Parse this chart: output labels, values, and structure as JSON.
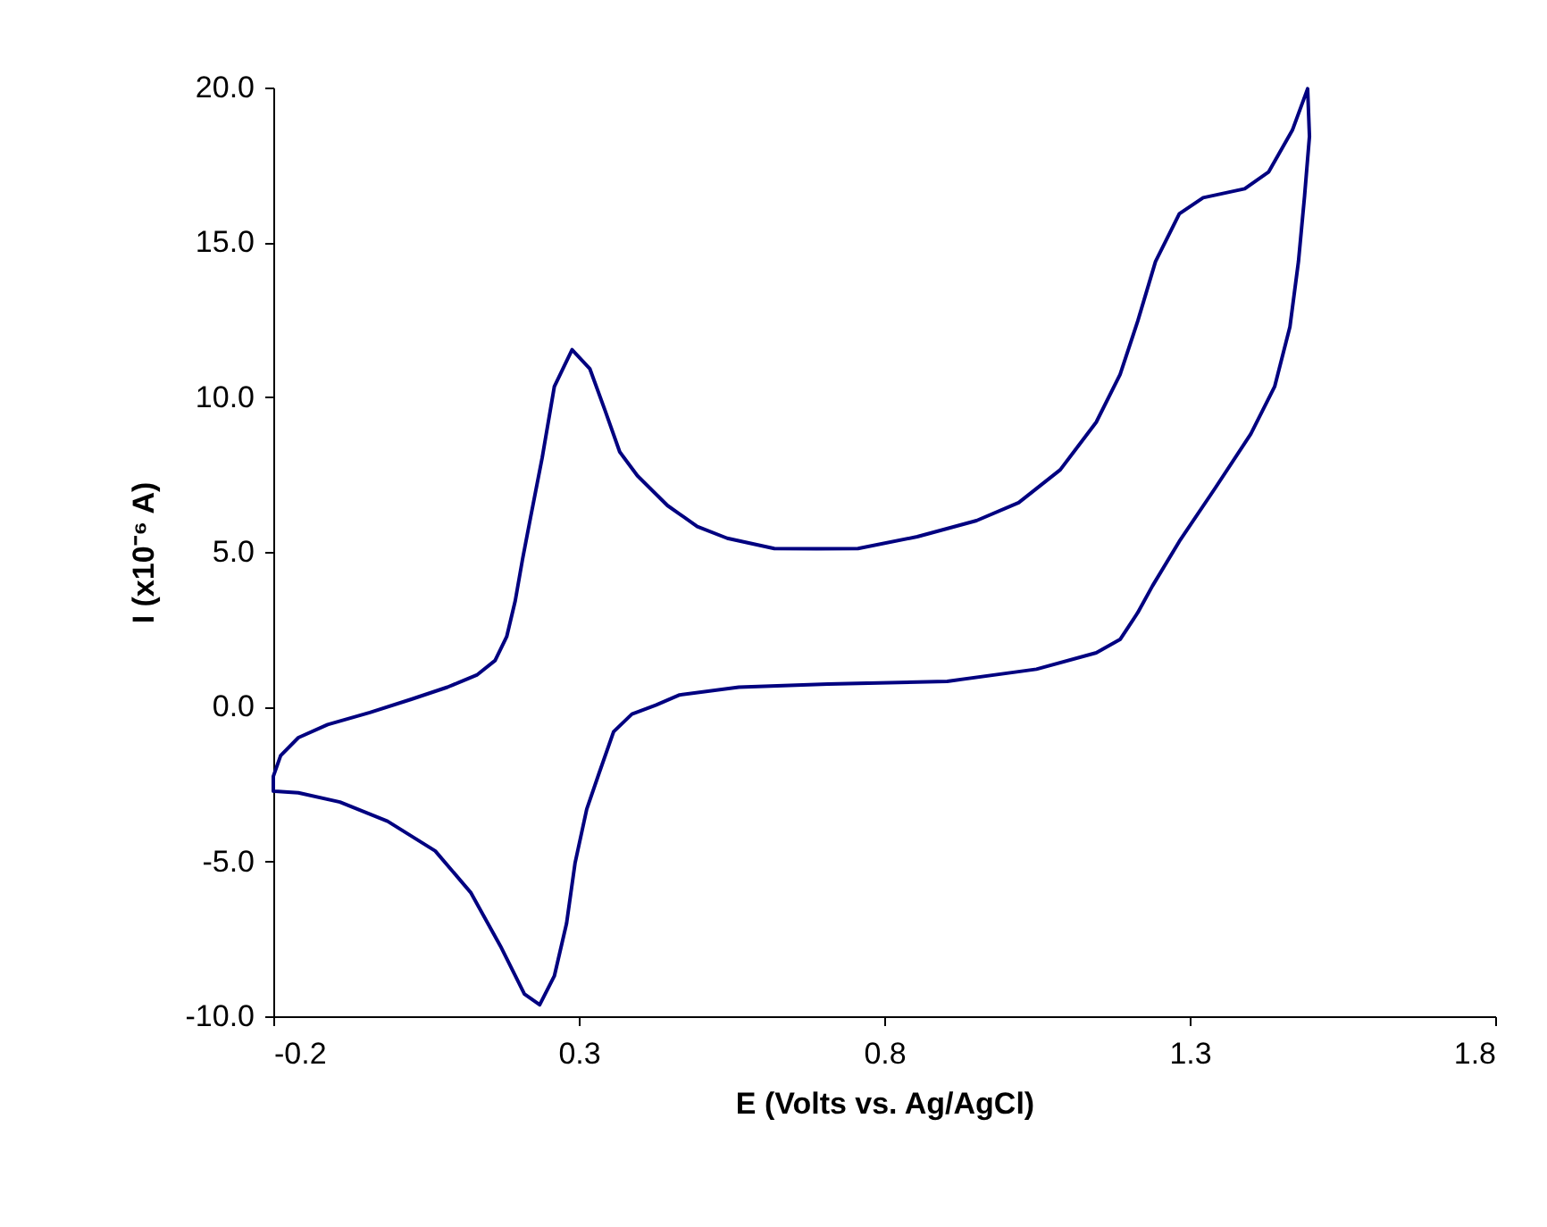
{
  "chart_data": {
    "type": "line",
    "xlabel": "E (Volts vs. Ag/AgCl)",
    "ylabel": "I (x10⁻⁶ A)",
    "xlim": [
      -0.2,
      1.8
    ],
    "xticks": [
      -0.2,
      0.3,
      0.8,
      1.3,
      1.8
    ],
    "ylim": [
      -10,
      20
    ],
    "yticks": [
      {
        "value": -10,
        "label": "-10.0"
      },
      {
        "value": -5,
        "label": "-5.0"
      },
      {
        "value": 0,
        "label": "0.0"
      },
      {
        "value": 5,
        "label": "5.0"
      },
      {
        "value": 10,
        "label": "10.0"
      },
      {
        "value": 15,
        "label": "15.0"
      },
      {
        "value": 20,
        "label": "20.0"
      }
    ],
    "grid": false,
    "marker": "none",
    "line_style": "solid",
    "series": [
      {
        "color": "#000080",
        "x": [
          -0.2,
          -0.2,
          -0.188,
          -0.159,
          -0.111,
          -0.042,
          0.026,
          0.085,
          0.133,
          0.163,
          0.182,
          0.196,
          0.208,
          0.221,
          0.24,
          0.26,
          0.289,
          0.318,
          0.343,
          0.367,
          0.396,
          0.445,
          0.494,
          0.543,
          0.62,
          0.69,
          0.757,
          0.854,
          0.951,
          1.02,
          1.088,
          1.147,
          1.186,
          1.215,
          1.244,
          1.283,
          1.322,
          1.39,
          1.429,
          1.468,
          1.493,
          1.496,
          1.488,
          1.478,
          1.464,
          1.439,
          1.4,
          1.342,
          1.283,
          1.239,
          1.215,
          1.186,
          1.147,
          1.049,
          0.903,
          0.708,
          0.562,
          0.465,
          0.426,
          0.387,
          0.357,
          0.333,
          0.313,
          0.294,
          0.28,
          0.26,
          0.236,
          0.211,
          0.172,
          0.123,
          0.065,
          -0.013,
          -0.091,
          -0.159,
          -0.198
        ],
        "values": [
          -2.73,
          -2.25,
          -1.58,
          -1.0,
          -0.58,
          -0.19,
          0.24,
          0.63,
          1.02,
          1.49,
          2.26,
          3.42,
          4.77,
          6.11,
          8.03,
          10.34,
          11.53,
          10.92,
          9.57,
          8.23,
          7.46,
          6.5,
          5.82,
          5.44,
          5.11,
          5.1,
          5.11,
          5.49,
          6.01,
          6.59,
          7.65,
          9.19,
          10.73,
          12.46,
          14.38,
          15.92,
          16.44,
          16.73,
          17.27,
          18.62,
          19.96,
          18.42,
          16.5,
          14.38,
          12.27,
          10.34,
          8.81,
          7.07,
          5.34,
          3.9,
          3.04,
          2.17,
          1.74,
          1.21,
          0.82,
          0.73,
          0.63,
          0.38,
          0.05,
          -0.24,
          -0.81,
          -2.16,
          -3.31,
          -5.04,
          -7.0,
          -8.7,
          -9.63,
          -9.28,
          -7.74,
          -6.0,
          -4.66,
          -3.7,
          -3.08,
          -2.78,
          -2.73
        ]
      }
    ]
  }
}
